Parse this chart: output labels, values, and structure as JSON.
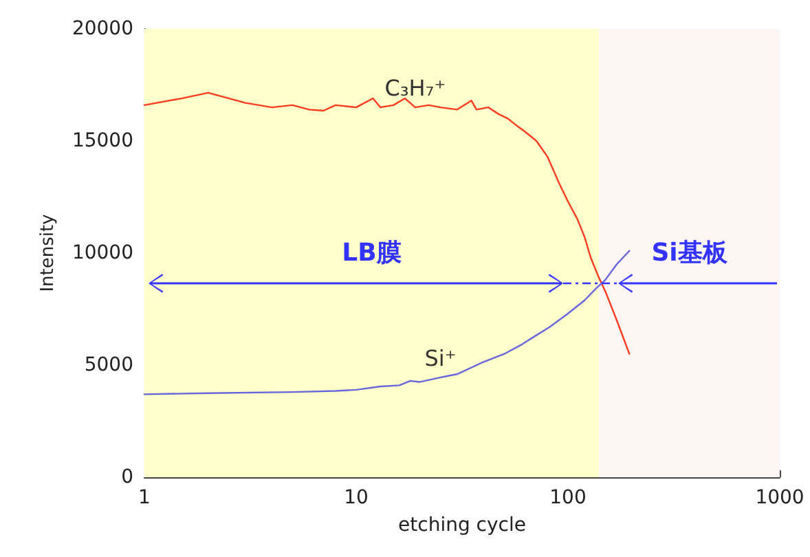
{
  "chart_data": {
    "type": "line",
    "xlabel": "etching cycle",
    "ylabel": "Intensity",
    "log": "x",
    "xlim": [
      1,
      1000
    ],
    "xticks": [
      1,
      10,
      100,
      1000
    ],
    "ylim": [
      0,
      20000
    ],
    "yticks": [
      0,
      5000,
      10000,
      15000,
      20000
    ],
    "grid": false,
    "legend": false,
    "marker": "none",
    "line_style": "solid",
    "bands": [
      {
        "axis": "x",
        "from": 1,
        "to": 140,
        "label": "LB膜",
        "color": "#ffffcc"
      },
      {
        "axis": "x",
        "from": 140,
        "to": 1000,
        "label": "Si基板",
        "color": "#fdf6f3"
      }
    ],
    "series": [
      {
        "name": "C₃H₇⁺",
        "color": "#ff3b1f",
        "x": [
          1,
          1.5,
          2,
          3,
          4,
          5,
          6,
          7,
          8,
          10,
          12,
          13,
          15,
          17,
          19,
          22,
          25,
          30,
          35,
          37,
          42,
          47,
          52,
          57,
          63,
          71,
          80,
          91,
          100,
          111,
          120,
          128,
          140,
          150,
          170,
          195
        ],
        "values": [
          16600,
          16900,
          17150,
          16700,
          16500,
          16600,
          16400,
          16350,
          16600,
          16500,
          16900,
          16500,
          16600,
          16900,
          16500,
          16600,
          16500,
          16400,
          16800,
          16400,
          16500,
          16200,
          16000,
          15700,
          15400,
          15000,
          14300,
          13100,
          12300,
          11500,
          10700,
          9800,
          8900,
          8300,
          7000,
          5500
        ]
      },
      {
        "name": "Si⁺",
        "color": "#6666dd",
        "x": [
          1,
          2,
          5,
          8,
          10,
          13,
          16,
          18,
          20,
          25,
          30,
          39,
          50,
          60,
          70,
          82,
          100,
          120,
          135,
          150,
          170,
          195
        ],
        "values": [
          3700,
          3750,
          3800,
          3850,
          3900,
          4050,
          4100,
          4300,
          4250,
          4450,
          4600,
          5100,
          5500,
          5900,
          6300,
          6700,
          7300,
          7900,
          8400,
          8800,
          9500,
          10100
        ]
      }
    ]
  }
}
